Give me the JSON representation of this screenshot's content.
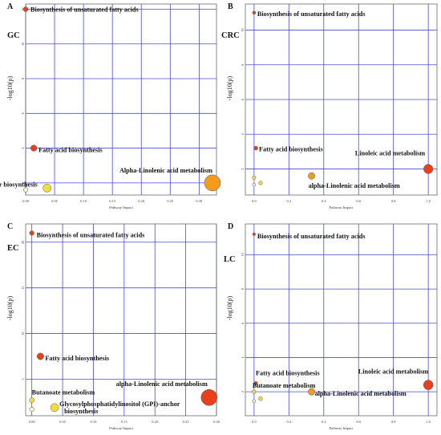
{
  "colors": {
    "grid": "#4b4bd6",
    "frame": "#6a6a6a",
    "high": "#e8401c",
    "mid": "#f39a1f",
    "low": "#f6dc3a",
    "none": "#fff7cc",
    "label": "#111111"
  },
  "chart_data": [
    {
      "type": "scatter",
      "panel_letter": "A",
      "group": "GC",
      "xlabel": "Pathway Impact",
      "ylabel": "-log10(p)",
      "xlim": [
        0,
        0.33
      ],
      "ylim": [
        1.3,
        12.3
      ],
      "xticks": [
        "0.00",
        "0.05",
        "0.10",
        "0.15",
        "0.20",
        "0.25",
        "0.30"
      ],
      "yticks": [
        "12",
        "10",
        "8",
        "6",
        "4",
        "2"
      ],
      "points": [
        {
          "x": 0.0,
          "y": 12.0,
          "r": 3.0,
          "level": "high",
          "label": "Biosynthesis of unsaturated fatty acids"
        },
        {
          "x": 0.014,
          "y": 4.0,
          "r": 3.8,
          "level": "high",
          "label": "Fatty acid biosynthesis"
        },
        {
          "x": 0.037,
          "y": 1.7,
          "r": 5.0,
          "level": "low",
          "label": "Glycosylphosphatidylinositol (GPI)-anchor biosynthesis"
        },
        {
          "x": 0.0,
          "y": 1.6,
          "r": 2.8,
          "level": "none",
          "label": ""
        },
        {
          "x": 0.323,
          "y": 2.0,
          "r": 10.0,
          "level": "mid",
          "label": "Alpha-Linolenic acid metabolism"
        }
      ]
    },
    {
      "type": "scatter",
      "panel_letter": "B",
      "group": "CRC",
      "xlabel": "Pathway Impact",
      "ylabel": "-log10(p)",
      "xlim": [
        -0.05,
        1.05
      ],
      "ylim": [
        0.5,
        11.5
      ],
      "xticks": [
        "0.0",
        "0.2",
        "0.4",
        "0.6",
        "0.8",
        "1.0"
      ],
      "yticks": [
        "10",
        "8",
        "6",
        "4",
        "2"
      ],
      "points": [
        {
          "x": 0.0,
          "y": 11.0,
          "r": 2.0,
          "level": "high",
          "label": "Biosynthesis of unsaturated fatty acids"
        },
        {
          "x": 0.01,
          "y": 3.2,
          "r": 2.5,
          "level": "high",
          "label": "Fatty acid biosynthesis"
        },
        {
          "x": 1.0,
          "y": 2.0,
          "r": 5.8,
          "level": "high",
          "label": "Linoleic acid metabolism"
        },
        {
          "x": 0.33,
          "y": 1.6,
          "r": 4.2,
          "level": "mid",
          "label": "alpha-Linolenic acid metabolism"
        },
        {
          "x": 0.0,
          "y": 1.5,
          "r": 2.2,
          "level": "low",
          "label": ""
        },
        {
          "x": 0.037,
          "y": 1.2,
          "r": 2.3,
          "level": "low",
          "label": ""
        },
        {
          "x": 0.0,
          "y": 1.1,
          "r": 2.0,
          "level": "none",
          "label": ""
        }
      ]
    },
    {
      "type": "scatter",
      "panel_letter": "C",
      "group": "EC",
      "xlabel": "Pathway Impact",
      "ylabel": "-log10(p)",
      "xlim": [
        -0.01,
        0.3
      ],
      "ylim": [
        1.0,
        22.0
      ],
      "xticks": [
        "0.00",
        "0.05",
        "0.10",
        "0.15",
        "0.20",
        "0.25",
        "0.30"
      ],
      "yticks": [
        "20",
        "15",
        "10",
        "5"
      ],
      "points": [
        {
          "x": 0.0,
          "y": 21.0,
          "r": 2.8,
          "level": "high",
          "label": "Biosynthesis of unsaturated fatty acids"
        },
        {
          "x": 0.014,
          "y": 7.5,
          "r": 4.2,
          "level": "high",
          "label": "Fatty acid biosynthesis"
        },
        {
          "x": 0.0,
          "y": 2.7,
          "r": 3.0,
          "level": "low",
          "label": "Butanoate metabolism"
        },
        {
          "x": 0.037,
          "y": 1.9,
          "r": 5.0,
          "level": "low",
          "label": "Glycosylphosphatidylinositol (GPI)-anchor biosynthesis"
        },
        {
          "x": 0.0,
          "y": 1.7,
          "r": 2.8,
          "level": "none",
          "label": ""
        },
        {
          "x": 0.288,
          "y": 3.0,
          "r": 10.0,
          "level": "high",
          "label": "alpha-Linolenic acid metabolism"
        }
      ]
    },
    {
      "type": "scatter",
      "panel_letter": "D",
      "group": "LC",
      "xlabel": "Pathway Impact",
      "ylabel": "-log10(p)",
      "xlim": [
        -0.05,
        1.05
      ],
      "ylim": [
        0.6,
        11.8
      ],
      "xticks": [
        "0.0",
        "0.2",
        "0.4",
        "0.6",
        "0.8",
        "1.0"
      ],
      "yticks": [
        "10",
        "8",
        "6",
        "4",
        "2"
      ],
      "points": [
        {
          "x": 0.0,
          "y": 11.2,
          "r": 1.8,
          "level": "high",
          "label": "Biosynthesis of unsaturated fatty acids"
        },
        {
          "x": 0.01,
          "y": 2.5,
          "r": 2.2,
          "level": "high",
          "label": "Fatty acid biosynthesis"
        },
        {
          "x": 1.0,
          "y": 2.4,
          "r": 6.0,
          "level": "high",
          "label": "Linoleic acid metabolism"
        },
        {
          "x": 0.33,
          "y": 2.0,
          "r": 4.2,
          "level": "mid",
          "label": "alpha-Linolenic acid metabolism"
        },
        {
          "x": 0.0,
          "y": 2.0,
          "r": 2.2,
          "level": "low",
          "label": "Butanoate metabolism"
        },
        {
          "x": 0.037,
          "y": 1.6,
          "r": 2.4,
          "level": "low",
          "label": ""
        },
        {
          "x": 0.0,
          "y": 1.45,
          "r": 2.0,
          "level": "none",
          "label": ""
        }
      ]
    }
  ]
}
